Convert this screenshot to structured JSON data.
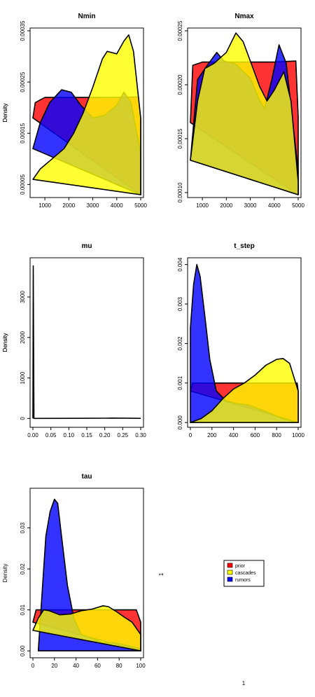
{
  "ylabel": "Density",
  "colors": {
    "prior": "#ff0000",
    "cascades": "#ffff00",
    "rumors": "#0000ff"
  },
  "legend": {
    "entries": [
      {
        "name": "prior",
        "color": "#ff0000"
      },
      {
        "name": "cascades",
        "color": "#ffff00"
      },
      {
        "name": "rumors",
        "color": "#0000ff"
      }
    ],
    "x_axis_label": "1",
    "y_axis_label": "1"
  },
  "chart_data": [
    {
      "type": "area",
      "title": "Nmin",
      "ylabel": "Density",
      "xlim": [
        500,
        5000
      ],
      "ylim": [
        3e-05,
        0.00035
      ],
      "xticks": [
        1000,
        2000,
        3000,
        4000,
        5000
      ],
      "yticks": [
        "0.00005",
        "0.00015",
        "0.00025",
        "0.00035"
      ],
      "series": [
        {
          "name": "prior",
          "points": [
            [
              500,
              0.00018
            ],
            [
              600,
              0.00021
            ],
            [
              1000,
              0.00022
            ],
            [
              2000,
              0.00022
            ],
            [
              3000,
              0.00022
            ],
            [
              4000,
              0.00022
            ],
            [
              4900,
              0.000221
            ],
            [
              5000,
              0.000175
            ],
            [
              5000,
              3e-05
            ]
          ]
        },
        {
          "name": "rumors",
          "points": [
            [
              500,
              0.00012
            ],
            [
              800,
              0.00017
            ],
            [
              1200,
              0.00021
            ],
            [
              1700,
              0.000235
            ],
            [
              2100,
              0.00023
            ],
            [
              2500,
              0.000205
            ],
            [
              3000,
              0.00018
            ],
            [
              3500,
              0.000185
            ],
            [
              4000,
              0.000205
            ],
            [
              4300,
              0.00023
            ],
            [
              4600,
              0.00021
            ],
            [
              5000,
              0.00011
            ],
            [
              5000,
              3e-05
            ]
          ]
        },
        {
          "name": "cascades",
          "points": [
            [
              500,
              6e-05
            ],
            [
              800,
              8e-05
            ],
            [
              1300,
              0.0001
            ],
            [
              1800,
              0.00012
            ],
            [
              2200,
              0.00015
            ],
            [
              2600,
              0.00019
            ],
            [
              3000,
              0.00024
            ],
            [
              3400,
              0.000295
            ],
            [
              3600,
              0.00031
            ],
            [
              4000,
              0.000305
            ],
            [
              4300,
              0.00033
            ],
            [
              4500,
              0.000342
            ],
            [
              4700,
              0.00031
            ],
            [
              5000,
              0.00018
            ],
            [
              5000,
              3e-05
            ]
          ]
        }
      ]
    },
    {
      "type": "area",
      "title": "Nmax",
      "ylabel": "Density",
      "xlim": [
        500,
        5000
      ],
      "ylim": [
        9.8e-05,
        0.00025
      ],
      "xticks": [
        1000,
        2000,
        3000,
        4000,
        5000
      ],
      "yticks": [
        "0.00010",
        "0.00015",
        "0.00020",
        "0.00025"
      ],
      "series": [
        {
          "name": "prior",
          "points": [
            [
              500,
              0.000165
            ],
            [
              600,
              0.000218
            ],
            [
              1000,
              0.000221
            ],
            [
              2000,
              0.000221
            ],
            [
              3000,
              0.000221
            ],
            [
              4000,
              0.000221
            ],
            [
              4900,
              0.000222
            ],
            [
              5000,
              0.00017
            ],
            [
              5000,
              9.8e-05
            ]
          ]
        },
        {
          "name": "rumors",
          "points": [
            [
              500,
              0.00013
            ],
            [
              800,
              0.000205
            ],
            [
              1200,
              0.000218
            ],
            [
              1600,
              0.00023
            ],
            [
              1900,
              0.000222
            ],
            [
              2400,
              0.000219
            ],
            [
              3000,
              0.000206
            ],
            [
              3400,
              0.000185
            ],
            [
              3600,
              0.000178
            ],
            [
              3900,
              0.000205
            ],
            [
              4200,
              0.000237
            ],
            [
              4500,
              0.00022
            ],
            [
              5000,
              0.00012
            ],
            [
              5000,
              9.8e-05
            ]
          ]
        },
        {
          "name": "cascades",
          "points": [
            [
              500,
              0.00013
            ],
            [
              800,
              0.000185
            ],
            [
              1100,
              0.000215
            ],
            [
              1500,
              0.00022
            ],
            [
              2000,
              0.00023
            ],
            [
              2400,
              0.000248
            ],
            [
              2700,
              0.00024
            ],
            [
              3000,
              0.000222
            ],
            [
              3400,
              0.000198
            ],
            [
              3700,
              0.000185
            ],
            [
              4000,
              0.000195
            ],
            [
              4400,
              0.000212
            ],
            [
              4700,
              0.000185
            ],
            [
              5000,
              0.00011
            ],
            [
              5000,
              9.8e-05
            ]
          ]
        }
      ]
    },
    {
      "type": "line",
      "title": "mu",
      "ylabel": "Density",
      "xlim": [
        0.0,
        0.3
      ],
      "ylim": [
        -150,
        3900
      ],
      "xticks": [
        "0.00",
        "0.05",
        "0.10",
        "0.15",
        "0.20",
        "0.25",
        "0.30"
      ],
      "yticks": [
        0,
        1000,
        2000,
        3000
      ],
      "series": [
        {
          "name": "mu",
          "points": [
            [
              0.0,
              0
            ],
            [
              0.001,
              3780
            ],
            [
              0.003,
              0
            ],
            [
              0.1,
              2
            ],
            [
              0.2,
              6
            ],
            [
              0.22,
              10
            ],
            [
              0.25,
              7
            ],
            [
              0.3,
              2
            ]
          ]
        }
      ]
    },
    {
      "type": "area",
      "title": "t_step",
      "ylabel": "Density",
      "xlim": [
        0,
        1000
      ],
      "ylim": [
        -5e-05,
        0.0041
      ],
      "xticks": [
        0,
        200,
        400,
        600,
        800,
        1000
      ],
      "yticks": [
        "0.000",
        "0.001",
        "0.002",
        "0.003",
        "0.004"
      ],
      "series": [
        {
          "name": "prior",
          "points": [
            [
              0,
              0.0008
            ],
            [
              20,
              0.001
            ],
            [
              100,
              0.001
            ],
            [
              500,
              0.001
            ],
            [
              900,
              0.001
            ],
            [
              990,
              0.001
            ],
            [
              1000,
              0.0008
            ],
            [
              1000,
              0
            ]
          ]
        },
        {
          "name": "rumors",
          "points": [
            [
              0,
              0.0024
            ],
            [
              30,
              0.0035
            ],
            [
              60,
              0.004
            ],
            [
              90,
              0.0037
            ],
            [
              130,
              0.0028
            ],
            [
              180,
              0.0016
            ],
            [
              240,
              0.0008
            ],
            [
              330,
              0.00055
            ],
            [
              430,
              0.00048
            ],
            [
              530,
              0.00045
            ],
            [
              630,
              0.00035
            ],
            [
              730,
              0.00025
            ],
            [
              850,
              0.0001
            ],
            [
              1000,
              0
            ],
            [
              0,
              0
            ]
          ]
        },
        {
          "name": "cascades",
          "points": [
            [
              0,
              0
            ],
            [
              100,
              0.0001
            ],
            [
              200,
              0.0003
            ],
            [
              300,
              0.0006
            ],
            [
              400,
              0.00085
            ],
            [
              500,
              0.001
            ],
            [
              600,
              0.0012
            ],
            [
              700,
              0.00145
            ],
            [
              800,
              0.0016
            ],
            [
              860,
              0.00162
            ],
            [
              920,
              0.0015
            ],
            [
              1000,
              0.0008
            ],
            [
              1000,
              0
            ]
          ]
        }
      ]
    },
    {
      "type": "area",
      "title": "tau",
      "ylabel": "Density",
      "xlim": [
        0,
        100
      ],
      "ylim": [
        -0.001,
        0.039
      ],
      "xticks": [
        0,
        20,
        40,
        60,
        80,
        100
      ],
      "yticks": [
        "0.00",
        "0.01",
        "0.02",
        "0.03"
      ],
      "series": [
        {
          "name": "prior",
          "points": [
            [
              0,
              0.007
            ],
            [
              3,
              0.01
            ],
            [
              20,
              0.01
            ],
            [
              50,
              0.01
            ],
            [
              96,
              0.01
            ],
            [
              100,
              0.007
            ],
            [
              100,
              0
            ]
          ]
        },
        {
          "name": "rumors",
          "points": [
            [
              5,
              0
            ],
            [
              8,
              0.012
            ],
            [
              12,
              0.028
            ],
            [
              16,
              0.034
            ],
            [
              20,
              0.037
            ],
            [
              23,
              0.036
            ],
            [
              27,
              0.027
            ],
            [
              32,
              0.016
            ],
            [
              38,
              0.008
            ],
            [
              45,
              0.004
            ],
            [
              55,
              0.003
            ],
            [
              65,
              0.002
            ],
            [
              75,
              0.002
            ],
            [
              85,
              0.0015
            ],
            [
              100,
              0.0005
            ],
            [
              100,
              0
            ]
          ]
        },
        {
          "name": "cascades",
          "points": [
            [
              0,
              0.005
            ],
            [
              5,
              0.008
            ],
            [
              10,
              0.01
            ],
            [
              15,
              0.0098
            ],
            [
              25,
              0.0088
            ],
            [
              35,
              0.009
            ],
            [
              45,
              0.0098
            ],
            [
              55,
              0.0102
            ],
            [
              65,
              0.011
            ],
            [
              70,
              0.0108
            ],
            [
              78,
              0.0095
            ],
            [
              85,
              0.0082
            ],
            [
              92,
              0.007
            ],
            [
              100,
              0.004
            ],
            [
              100,
              0
            ]
          ]
        }
      ]
    }
  ]
}
